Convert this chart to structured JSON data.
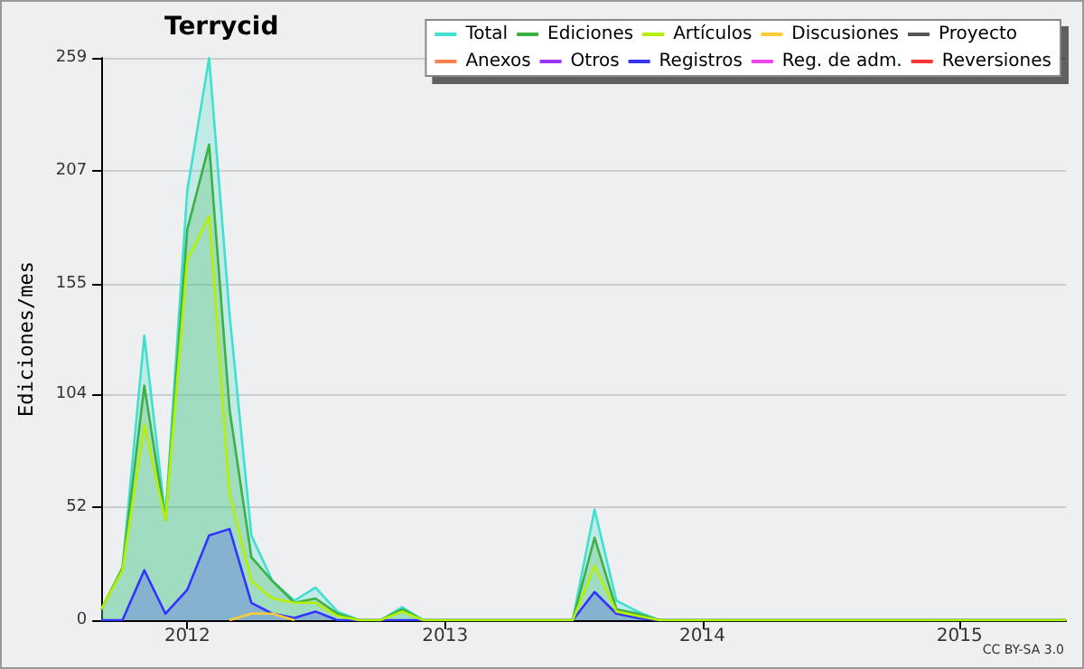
{
  "chart_data": {
    "type": "line",
    "title": "Terrycid",
    "ylabel": "Ediciones/mes",
    "x": [
      "2011-09",
      "2011-10",
      "2011-11",
      "2011-12",
      "2012-01",
      "2012-02",
      "2012-03",
      "2012-04",
      "2012-05",
      "2012-06",
      "2012-07",
      "2012-08",
      "2012-09",
      "2012-10",
      "2012-11",
      "2012-12",
      "2013-01",
      "2013-02",
      "2013-03",
      "2013-04",
      "2013-05",
      "2013-06",
      "2013-07",
      "2013-08",
      "2013-09",
      "2013-10",
      "2013-11",
      "2013-12",
      "2014-01",
      "2014-02",
      "2014-03",
      "2014-04",
      "2014-05",
      "2014-06",
      "2014-07",
      "2014-08",
      "2014-09",
      "2014-10",
      "2014-11",
      "2014-12",
      "2015-01",
      "2015-02",
      "2015-03",
      "2015-04",
      "2015-05",
      "2015-06"
    ],
    "series": [
      {
        "name": "Total",
        "color": "#40e0d0",
        "type": "area",
        "values": [
          5,
          24,
          131,
          47,
          198,
          259,
          141,
          39,
          18,
          9,
          15,
          4,
          0,
          0,
          6,
          0,
          0,
          0,
          0,
          0,
          0,
          0,
          0,
          51,
          9,
          4,
          0,
          0,
          0,
          0,
          0,
          0,
          0,
          0,
          0,
          0,
          0,
          0,
          0,
          0,
          0,
          0,
          0,
          0,
          0,
          0
        ]
      },
      {
        "name": "Ediciones",
        "color": "#3cb043",
        "type": "area",
        "values": [
          5,
          24,
          108,
          46,
          180,
          219,
          97,
          29,
          18,
          8,
          10,
          3,
          0,
          0,
          5,
          0,
          0,
          0,
          0,
          0,
          0,
          0,
          0,
          38,
          5,
          3,
          0,
          0,
          0,
          0,
          0,
          0,
          0,
          0,
          0,
          0,
          0,
          0,
          0,
          0,
          0,
          0,
          0,
          0,
          0,
          0
        ]
      },
      {
        "name": "Artículos",
        "color": "#b4f000",
        "values": [
          5,
          23,
          90,
          46,
          166,
          186,
          58,
          18,
          10,
          8,
          8,
          2,
          0,
          0,
          4,
          0,
          0,
          0,
          0,
          0,
          0,
          0,
          0,
          25,
          4,
          2,
          0,
          0,
          0,
          0,
          0,
          0,
          0,
          0,
          0,
          0,
          0,
          0,
          0,
          0,
          0,
          0,
          0,
          0,
          0,
          0
        ]
      },
      {
        "name": "Discusiones",
        "color": "#ffcc33",
        "values": [
          null,
          null,
          null,
          null,
          null,
          null,
          0,
          3,
          3,
          0,
          null,
          null,
          null,
          null,
          null,
          null,
          null,
          null,
          null,
          null,
          null,
          null,
          null,
          null,
          null,
          null,
          null,
          null,
          null,
          null,
          null,
          null,
          null,
          null,
          null,
          null,
          null,
          null,
          null,
          null,
          null,
          null,
          null,
          null,
          null,
          null
        ]
      },
      {
        "name": "Proyecto",
        "color": "#555555",
        "values": [
          null,
          null,
          null,
          null,
          null,
          null,
          null,
          null,
          null,
          null,
          null,
          null,
          null,
          null,
          null,
          null,
          null,
          null,
          null,
          null,
          null,
          null,
          null,
          null,
          null,
          null,
          null,
          null,
          null,
          null,
          null,
          null,
          null,
          null,
          null,
          null,
          null,
          null,
          null,
          null,
          null,
          null,
          null,
          null,
          null,
          null
        ]
      },
      {
        "name": "Anexos",
        "color": "#ff7f50",
        "values": [
          null,
          null,
          null,
          null,
          null,
          null,
          null,
          null,
          null,
          null,
          null,
          null,
          null,
          null,
          null,
          null,
          null,
          null,
          null,
          null,
          null,
          null,
          null,
          null,
          null,
          null,
          null,
          null,
          null,
          null,
          null,
          null,
          null,
          null,
          null,
          null,
          null,
          null,
          null,
          null,
          null,
          null,
          null,
          null,
          null,
          null
        ]
      },
      {
        "name": "Otros",
        "color": "#9933ff",
        "values": [
          null,
          null,
          null,
          null,
          null,
          null,
          null,
          null,
          null,
          null,
          null,
          null,
          null,
          null,
          null,
          null,
          null,
          null,
          null,
          null,
          null,
          null,
          null,
          null,
          null,
          null,
          null,
          null,
          null,
          null,
          null,
          null,
          null,
          null,
          null,
          null,
          null,
          null,
          null,
          null,
          null,
          null,
          null,
          null,
          null,
          null
        ]
      },
      {
        "name": "Registros",
        "color": "#3333ff",
        "type": "area",
        "values": [
          0,
          0,
          23,
          3,
          14,
          39,
          42,
          8,
          3,
          1,
          4,
          0,
          0,
          0,
          0,
          0,
          0,
          0,
          0,
          0,
          0,
          0,
          0,
          13,
          3,
          1,
          0,
          0,
          0,
          0,
          0,
          0,
          0,
          0,
          0,
          0,
          0,
          0,
          0,
          0,
          0,
          0,
          0,
          0,
          0,
          0
        ]
      },
      {
        "name": "Reg. de adm.",
        "color": "#ee44ee",
        "values": [
          null,
          null,
          null,
          null,
          null,
          null,
          null,
          null,
          null,
          null,
          null,
          null,
          null,
          null,
          null,
          null,
          null,
          null,
          null,
          null,
          null,
          null,
          null,
          null,
          null,
          null,
          null,
          null,
          null,
          null,
          null,
          null,
          null,
          null,
          null,
          null,
          null,
          null,
          null,
          null,
          null,
          null,
          null,
          null,
          null,
          null
        ]
      },
      {
        "name": "Reversiones",
        "color": "#ff3333",
        "values": [
          null,
          null,
          null,
          null,
          null,
          null,
          null,
          null,
          null,
          null,
          null,
          null,
          null,
          null,
          null,
          null,
          null,
          null,
          null,
          null,
          null,
          null,
          null,
          null,
          null,
          null,
          null,
          null,
          null,
          null,
          null,
          null,
          null,
          null,
          null,
          null,
          null,
          null,
          null,
          null,
          null,
          null,
          null,
          null,
          null,
          null
        ]
      }
    ],
    "xlim": [
      "2011-09",
      "2015-06"
    ],
    "xticks": [
      {
        "value": "2012-01",
        "label": "2012"
      },
      {
        "value": "2013-01",
        "label": "2013"
      },
      {
        "value": "2014-01",
        "label": "2014"
      },
      {
        "value": "2015-01",
        "label": "2015"
      }
    ],
    "ylim": [
      0,
      259
    ],
    "yticks": [
      0,
      52,
      104,
      155,
      207,
      259
    ],
    "grid": "y",
    "legend": "top right",
    "marker": "none",
    "annotations": [
      "CC BY-SA 3.0"
    ]
  }
}
